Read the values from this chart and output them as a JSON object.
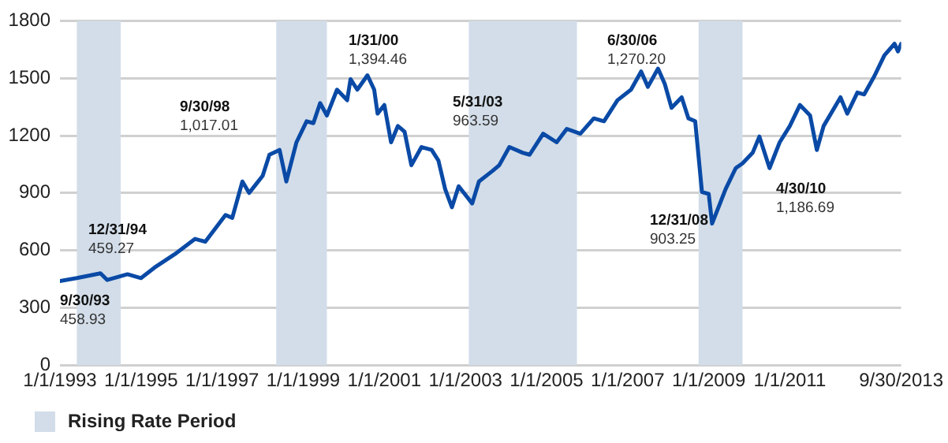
{
  "chart_data": {
    "type": "line",
    "x": [
      "1993-01",
      "1993-06",
      "1994-01",
      "1994-03",
      "1994-09",
      "1995-01",
      "1995-05",
      "1995-11",
      "1996-05",
      "1996-08",
      "1996-11",
      "1997-02",
      "1997-04",
      "1997-07",
      "1997-09",
      "1997-11",
      "1998-01",
      "1998-03",
      "1998-06",
      "1998-08",
      "1998-11",
      "1999-02",
      "1999-04",
      "1999-06",
      "1999-08",
      "1999-11",
      "2000-02",
      "2000-03",
      "2000-05",
      "2000-08",
      "2000-10",
      "2000-11",
      "2001-01",
      "2001-03",
      "2001-05",
      "2001-07",
      "2001-09",
      "2001-12",
      "2002-03",
      "2002-05",
      "2002-07",
      "2002-09",
      "2002-11",
      "2003-03",
      "2003-05",
      "2003-09",
      "2003-11",
      "2004-02",
      "2004-06",
      "2004-08",
      "2004-12",
      "2005-04",
      "2005-07",
      "2005-11",
      "2006-03",
      "2006-06",
      "2006-10",
      "2007-02",
      "2007-05",
      "2007-07",
      "2007-10",
      "2007-12",
      "2008-02",
      "2008-05",
      "2008-07",
      "2008-09",
      "2008-11",
      "2009-01",
      "2009-02",
      "2009-06",
      "2009-09",
      "2009-11",
      "2010-02",
      "2010-04",
      "2010-07",
      "2010-10",
      "2011-01",
      "2011-04",
      "2011-07",
      "2011-09",
      "2011-11",
      "2012-04",
      "2012-06",
      "2012-09",
      "2012-11",
      "2013-02",
      "2013-05",
      "2013-08",
      "2013-09",
      "2013-09-30"
    ],
    "series": [
      {
        "color": "#0a4aa6",
        "values": [
          440,
          455,
          480,
          445,
          475,
          455,
          510,
          580,
          660,
          645,
          715,
          785,
          770,
          960,
          900,
          945,
          990,
          1100,
          1125,
          960,
          1165,
          1275,
          1265,
          1370,
          1305,
          1440,
          1385,
          1495,
          1440,
          1515,
          1440,
          1315,
          1360,
          1165,
          1250,
          1220,
          1045,
          1140,
          1125,
          1070,
          920,
          825,
          935,
          845,
          960,
          1015,
          1045,
          1140,
          1110,
          1100,
          1210,
          1165,
          1235,
          1210,
          1290,
          1275,
          1385,
          1440,
          1535,
          1455,
          1550,
          1470,
          1345,
          1400,
          1290,
          1275,
          905,
          895,
          740,
          920,
          1030,
          1055,
          1110,
          1195,
          1030,
          1165,
          1250,
          1360,
          1305,
          1125,
          1250,
          1400,
          1315,
          1425,
          1415,
          1510,
          1620,
          1680,
          1640,
          1680
        ]
      }
    ],
    "xlim": [
      "1993-01-01",
      "2013-09-30"
    ],
    "xticks": [
      {
        "value": "1993-01-01",
        "label": "1/1/1993"
      },
      {
        "value": "1995-01-01",
        "label": "1/1/1995"
      },
      {
        "value": "1997-01-01",
        "label": "1/1/1997"
      },
      {
        "value": "1999-01-01",
        "label": "1/1/1999"
      },
      {
        "value": "2001-01-01",
        "label": "1/1/2001"
      },
      {
        "value": "2003-01-01",
        "label": "1/1/2003"
      },
      {
        "value": "2005-01-01",
        "label": "1/1/2005"
      },
      {
        "value": "2007-01-01",
        "label": "1/1/2007"
      },
      {
        "value": "2009-01-01",
        "label": "1/1/2009"
      },
      {
        "value": "2011-01-01",
        "label": "1/1/2011"
      },
      {
        "value": "2013-09-30",
        "label": "9/30/2013"
      }
    ],
    "ylim": [
      0,
      1800
    ],
    "yticks": [
      0,
      300,
      600,
      900,
      1200,
      1500,
      1800
    ],
    "grid": "y",
    "legend": "bottom left",
    "marker": "none",
    "line_style": "solid",
    "bands": [
      {
        "axis": "x",
        "from": "1993-06",
        "to": "1994-07",
        "label": "Rising Rate Period",
        "color": "#d2dde9"
      },
      {
        "axis": "x",
        "from": "1998-05",
        "to": "1999-08",
        "color": "#d2dde9"
      },
      {
        "axis": "x",
        "from": "2003-02",
        "to": "2005-10",
        "color": "#d2dde9"
      },
      {
        "axis": "x",
        "from": "2008-10",
        "to": "2009-11",
        "color": "#d2dde9"
      }
    ],
    "annotations": [
      "9/30/93\n458.93",
      "12/31/94\n459.27",
      "9/30/98\n1,017.01",
      "1/31/00\n1,394.46",
      "5/31/03\n963.59",
      "6/30/06\n1,270.20",
      "12/31/08\n903.25",
      "4/30/10\n1,186.69"
    ]
  }
}
